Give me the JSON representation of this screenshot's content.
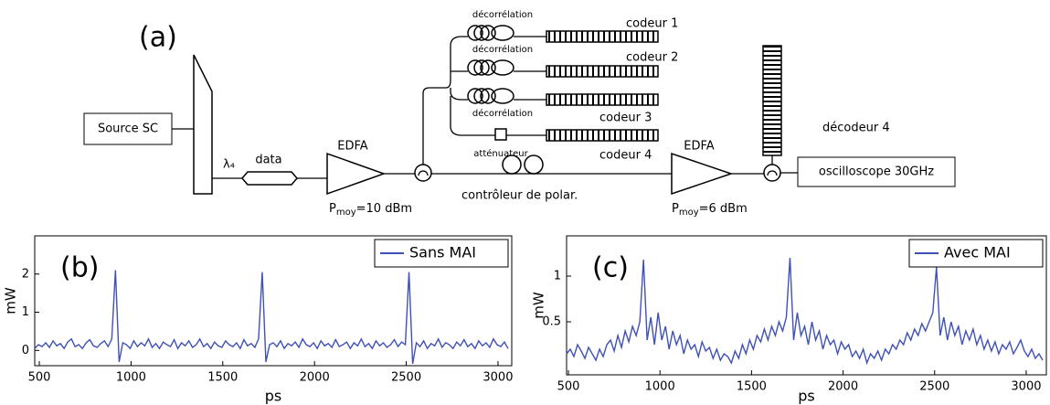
{
  "diagram": {
    "label": "(a)",
    "source": "Source SC",
    "wavelength": "λ₄",
    "modulator": "data",
    "amplifier_1": {
      "label": "EDFA",
      "power": {
        "symbol": "P",
        "subscript": "moy",
        "value": "=10 dBm"
      }
    },
    "branches": [
      {
        "delay": "décorrélation",
        "encoder": "codeur 1"
      },
      {
        "delay": "décorrélation",
        "encoder": "codeur 2"
      },
      {
        "delay": "décorrélation",
        "encoder": "codeur 3"
      },
      {
        "attenuator": "atténuateur",
        "encoder": "codeur 4"
      }
    ],
    "polarization_controller": "contrôleur de polar.",
    "amplifier_2": {
      "label": "EDFA",
      "power": {
        "symbol": "P",
        "subscript": "moy",
        "value": "=6 dBm"
      }
    },
    "decoder": "décodeur 4",
    "oscilloscope": "oscilloscope 30GHz"
  },
  "chart_data": [
    {
      "type": "line",
      "annotation": "(b)",
      "xlabel": "ps",
      "ylabel": "mW",
      "legend": "upper right",
      "x": [
        475,
        495,
        515,
        535,
        555,
        575,
        595,
        615,
        635,
        655,
        675,
        695,
        715,
        735,
        755,
        775,
        795,
        815,
        835,
        855,
        875,
        895,
        915,
        935,
        955,
        975,
        995,
        1015,
        1035,
        1055,
        1075,
        1095,
        1115,
        1135,
        1155,
        1175,
        1195,
        1215,
        1235,
        1255,
        1275,
        1295,
        1315,
        1335,
        1355,
        1375,
        1395,
        1415,
        1435,
        1455,
        1475,
        1495,
        1515,
        1535,
        1555,
        1575,
        1595,
        1615,
        1635,
        1655,
        1675,
        1695,
        1715,
        1735,
        1755,
        1775,
        1795,
        1815,
        1835,
        1855,
        1875,
        1895,
        1915,
        1935,
        1955,
        1975,
        1995,
        2015,
        2035,
        2055,
        2075,
        2095,
        2115,
        2135,
        2155,
        2175,
        2195,
        2215,
        2235,
        2255,
        2275,
        2295,
        2315,
        2335,
        2355,
        2375,
        2395,
        2415,
        2435,
        2455,
        2475,
        2495,
        2515,
        2535,
        2555,
        2575,
        2595,
        2615,
        2635,
        2655,
        2675,
        2695,
        2715,
        2735,
        2755,
        2775,
        2795,
        2815,
        2835,
        2855,
        2875,
        2895,
        2915,
        2935,
        2955,
        2975,
        2995,
        3015,
        3035,
        3055
      ],
      "series": [
        {
          "name": "Sans MAI",
          "color": "#3f51b5",
          "values": [
            0.05,
            0.15,
            0.1,
            0.2,
            0.08,
            0.25,
            0.12,
            0.18,
            0.05,
            0.22,
            0.3,
            0.1,
            0.15,
            0.05,
            0.2,
            0.28,
            0.12,
            0.08,
            0.18,
            0.25,
            0.1,
            0.3,
            2.1,
            -0.3,
            0.2,
            0.15,
            0.05,
            0.25,
            0.1,
            0.2,
            0.12,
            0.3,
            0.08,
            0.18,
            0.05,
            0.22,
            0.15,
            0.1,
            0.28,
            0.05,
            0.2,
            0.12,
            0.25,
            0.08,
            0.15,
            0.3,
            0.1,
            0.18,
            0.05,
            0.22,
            0.12,
            0.08,
            0.25,
            0.15,
            0.1,
            0.2,
            0.05,
            0.28,
            0.12,
            0.18,
            0.08,
            0.3,
            2.05,
            -0.3,
            0.15,
            0.2,
            0.1,
            0.25,
            0.05,
            0.18,
            0.12,
            0.22,
            0.08,
            0.3,
            0.15,
            0.1,
            0.2,
            0.05,
            0.25,
            0.12,
            0.18,
            0.08,
            0.28,
            0.1,
            0.15,
            0.22,
            0.05,
            0.2,
            0.12,
            0.3,
            0.1,
            0.18,
            0.05,
            0.25,
            0.12,
            0.2,
            0.08,
            0.15,
            0.28,
            0.1,
            0.22,
            0.15,
            2.05,
            -0.35,
            0.2,
            0.1,
            0.25,
            0.05,
            0.18,
            0.12,
            0.3,
            0.08,
            0.2,
            0.15,
            0.05,
            0.22,
            0.12,
            0.28,
            0.1,
            0.18,
            0.05,
            0.25,
            0.12,
            0.2,
            0.08,
            0.3,
            0.15,
            0.1,
            0.22,
            0.05
          ]
        }
      ],
      "xlim": [
        475,
        3075
      ],
      "ylim": [
        -0.4,
        3.0
      ],
      "xticks": [
        500,
        1000,
        1500,
        2000,
        2500,
        3000
      ],
      "yticks": [
        0,
        1,
        2
      ]
    },
    {
      "type": "line",
      "annotation": "(c)",
      "xlabel": "ps",
      "ylabel": "mW",
      "legend": "upper right",
      "x": [
        490,
        510,
        530,
        550,
        570,
        590,
        610,
        630,
        650,
        670,
        690,
        710,
        730,
        750,
        770,
        790,
        810,
        830,
        850,
        870,
        890,
        910,
        930,
        950,
        970,
        990,
        1010,
        1030,
        1050,
        1070,
        1090,
        1110,
        1130,
        1150,
        1170,
        1190,
        1210,
        1230,
        1250,
        1270,
        1290,
        1310,
        1330,
        1350,
        1370,
        1390,
        1410,
        1430,
        1450,
        1470,
        1490,
        1510,
        1530,
        1550,
        1570,
        1590,
        1610,
        1630,
        1650,
        1670,
        1690,
        1710,
        1730,
        1750,
        1770,
        1790,
        1810,
        1830,
        1850,
        1870,
        1890,
        1910,
        1930,
        1950,
        1970,
        1990,
        2010,
        2030,
        2050,
        2070,
        2090,
        2110,
        2130,
        2150,
        2170,
        2190,
        2210,
        2230,
        2250,
        2270,
        2290,
        2310,
        2330,
        2350,
        2370,
        2390,
        2410,
        2430,
        2450,
        2470,
        2490,
        2510,
        2530,
        2550,
        2570,
        2590,
        2610,
        2630,
        2650,
        2670,
        2690,
        2710,
        2730,
        2750,
        2770,
        2790,
        2810,
        2830,
        2850,
        2870,
        2890,
        2910,
        2930,
        2950,
        2970,
        2990,
        3010,
        3030,
        3050,
        3070,
        3090
      ],
      "series": [
        {
          "name": "Avec MAI",
          "color": "#3f51b5",
          "values": [
            0.15,
            0.2,
            0.12,
            0.25,
            0.18,
            0.1,
            0.22,
            0.15,
            0.08,
            0.2,
            0.12,
            0.25,
            0.3,
            0.18,
            0.35,
            0.22,
            0.4,
            0.28,
            0.45,
            0.35,
            0.5,
            1.18,
            0.3,
            0.55,
            0.25,
            0.6,
            0.3,
            0.45,
            0.2,
            0.4,
            0.25,
            0.35,
            0.15,
            0.3,
            0.2,
            0.25,
            0.12,
            0.28,
            0.18,
            0.22,
            0.1,
            0.2,
            0.08,
            0.15,
            0.12,
            0.05,
            0.18,
            0.1,
            0.25,
            0.15,
            0.3,
            0.2,
            0.35,
            0.28,
            0.42,
            0.3,
            0.45,
            0.35,
            0.5,
            0.4,
            0.55,
            1.2,
            0.3,
            0.6,
            0.35,
            0.45,
            0.25,
            0.5,
            0.3,
            0.4,
            0.2,
            0.35,
            0.25,
            0.3,
            0.15,
            0.28,
            0.2,
            0.25,
            0.12,
            0.18,
            0.1,
            0.2,
            0.05,
            0.15,
            0.1,
            0.18,
            0.08,
            0.2,
            0.15,
            0.25,
            0.2,
            0.3,
            0.25,
            0.38,
            0.3,
            0.42,
            0.35,
            0.48,
            0.4,
            0.5,
            0.6,
            1.1,
            0.35,
            0.55,
            0.3,
            0.5,
            0.35,
            0.45,
            0.25,
            0.4,
            0.3,
            0.42,
            0.25,
            0.35,
            0.2,
            0.3,
            0.18,
            0.28,
            0.15,
            0.25,
            0.2,
            0.28,
            0.15,
            0.22,
            0.3,
            0.18,
            0.12,
            0.2,
            0.1,
            0.15,
            0.08
          ]
        }
      ],
      "xlim": [
        490,
        3110
      ],
      "ylim": [
        -0.08,
        1.44
      ],
      "xticks": [
        500,
        1000,
        1500,
        2000,
        2500,
        3000
      ],
      "yticks": [
        0.5,
        1
      ]
    }
  ]
}
